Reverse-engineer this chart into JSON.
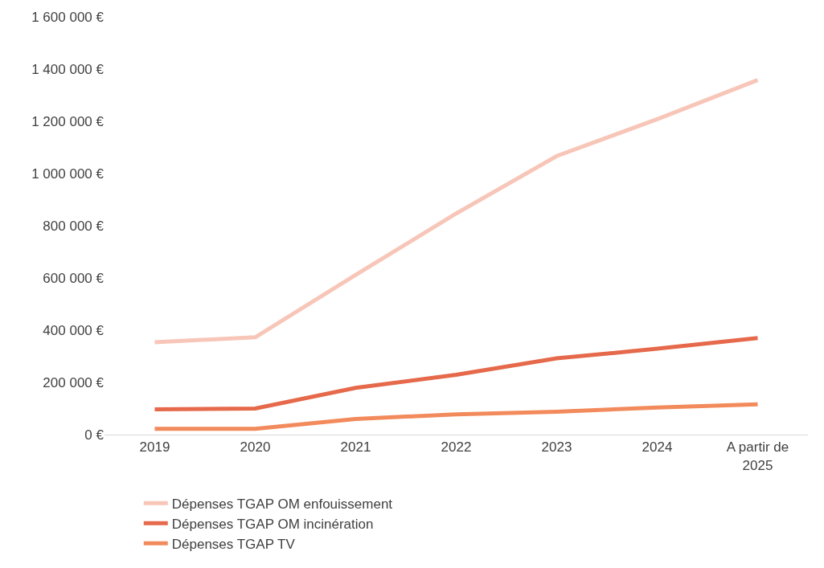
{
  "chart_data": {
    "type": "line",
    "categories": [
      "2019",
      "2020",
      "2021",
      "2022",
      "2023",
      "2024",
      "A partir de\n2025"
    ],
    "series": [
      {
        "name": "Dépenses TGAP OM enfouissement",
        "color": "#f7c6b8",
        "values": [
          354000,
          373000,
          612000,
          847000,
          1067000,
          1208000,
          1358000
        ]
      },
      {
        "name": "Dépenses TGAP OM incinération",
        "color": "#e5694a",
        "values": [
          97000,
          100000,
          179000,
          229000,
          292000,
          329000,
          370000
        ]
      },
      {
        "name": "Dépenses TGAP TV",
        "color": "#f28a5c",
        "values": [
          22000,
          22000,
          60000,
          78000,
          88000,
          104000,
          116000
        ]
      }
    ],
    "ylim": [
      0,
      1600000
    ],
    "yticks": [
      {
        "value": 0,
        "label": "0 €"
      },
      {
        "value": 200000,
        "label": "200 000 €"
      },
      {
        "value": 400000,
        "label": "400 000 €"
      },
      {
        "value": 600000,
        "label": "600 000 €"
      },
      {
        "value": 800000,
        "label": "800 000 €"
      },
      {
        "value": 1000000,
        "label": "1 000 000 €"
      },
      {
        "value": 1200000,
        "label": "1 200 000 €"
      },
      {
        "value": 1400000,
        "label": "1 400 000 €"
      },
      {
        "value": 1600000,
        "label": "1 600 000 €"
      }
    ],
    "legend": "bottom left",
    "marker": "none",
    "line_style": "solid"
  }
}
